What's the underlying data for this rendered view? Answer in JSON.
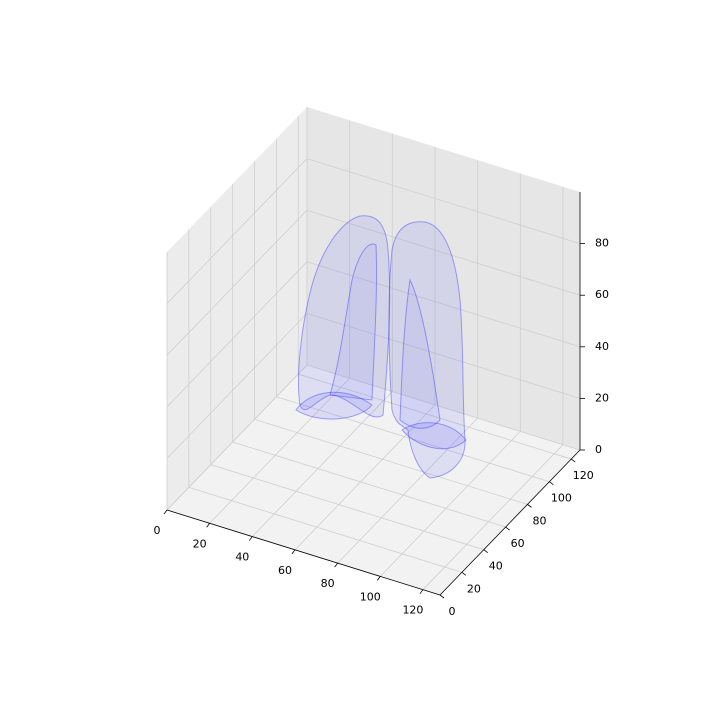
{
  "chart_data": {
    "type": "surface3d",
    "color": "#0000ff",
    "xlim": [
      0,
      128
    ],
    "ylim": [
      0,
      128
    ],
    "zlim": [
      0,
      100
    ],
    "xticks": [
      0,
      20,
      40,
      60,
      80,
      100,
      120
    ],
    "yticks": [
      0,
      20,
      40,
      60,
      80,
      100,
      120
    ],
    "zticks": [
      0,
      20,
      40,
      60,
      80
    ],
    "grid": true
  }
}
